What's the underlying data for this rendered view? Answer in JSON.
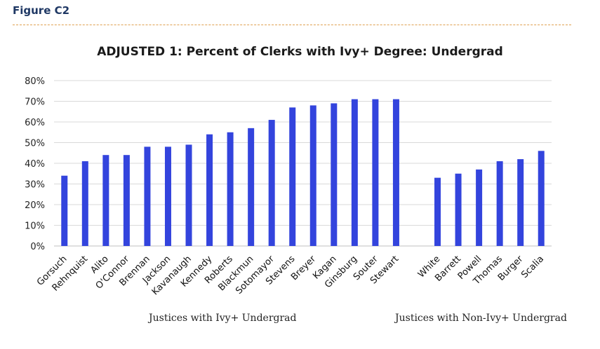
{
  "figure_label": "Figure C2",
  "chart_data": {
    "type": "bar",
    "title": "ADJUSTED 1: Percent of Clerks with Ivy+ Degree: Undergrad",
    "xlabel": "",
    "ylabel": "",
    "ylim": [
      0,
      80
    ],
    "yticks": [
      "0%",
      "10%",
      "20%",
      "30%",
      "40%",
      "50%",
      "60%",
      "70%",
      "80%"
    ],
    "grid": true,
    "bar_color": "#3344dd",
    "groups": [
      {
        "label": "Justices with Ivy+ Undergrad",
        "categories": [
          "Gorsuch",
          "Rehnquist",
          "Alito",
          "O'Connor",
          "Brennan",
          "Jackson",
          "Kavanaugh",
          "Kennedy",
          "Roberts",
          "Blackmun",
          "Sotomayor",
          "Stevens",
          "Breyer",
          "Kagan",
          "Ginsburg",
          "Souter",
          "Stewart"
        ],
        "values": [
          34,
          41,
          44,
          44,
          48,
          48,
          49,
          54,
          55,
          57,
          61,
          67,
          68,
          69,
          71,
          71,
          71
        ]
      },
      {
        "label": "Justices with Non-Ivy+ Undergrad",
        "categories": [
          "White",
          "Barrett",
          "Powell",
          "Thomas",
          "Burger",
          "Scalia"
        ],
        "values": [
          33,
          35,
          37,
          41,
          42,
          46
        ]
      }
    ]
  }
}
